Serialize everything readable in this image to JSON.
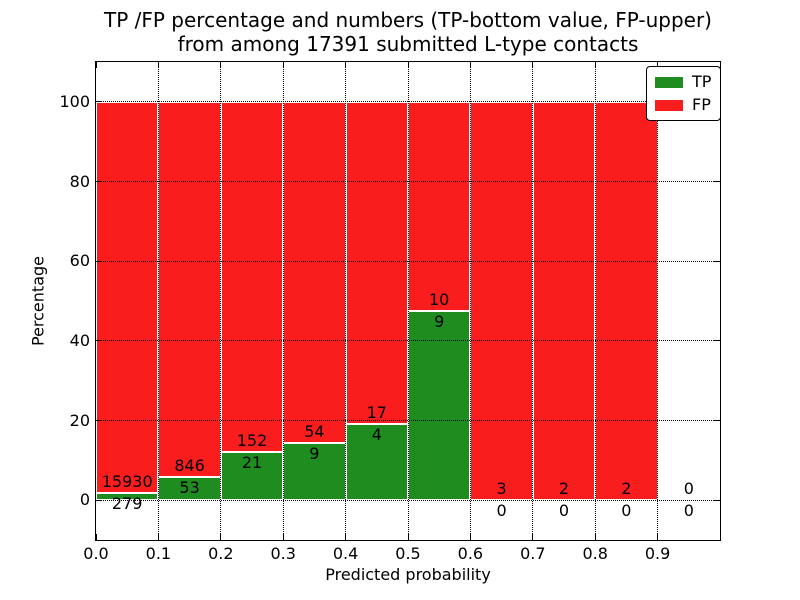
{
  "chart_data": {
    "type": "bar",
    "stacked": true,
    "title_line1": "TP /FP percentage and numbers (TP-bottom value, FP-upper)",
    "title_line2": "from among 17391 submitted L-type contacts",
    "xlabel": "Predicted probability",
    "ylabel": "Percentage",
    "xlim": [
      0.0,
      1.0
    ],
    "ylim": [
      -10,
      110
    ],
    "xtick_values": [
      0.0,
      0.1,
      0.2,
      0.3,
      0.4,
      0.5,
      0.6,
      0.7,
      0.8,
      0.9
    ],
    "xtick_labels": [
      "0.0",
      "0.1",
      "0.2",
      "0.3",
      "0.4",
      "0.5",
      "0.6",
      "0.7",
      "0.8",
      "0.9"
    ],
    "ytick_values": [
      0,
      20,
      40,
      60,
      80,
      100
    ],
    "ytick_labels": [
      "0",
      "20",
      "40",
      "60",
      "80",
      "100"
    ],
    "grid": "dotted",
    "bar_edge_color": "#ffffff",
    "colors": {
      "tp": "#1f8c1f",
      "fp": "#fa1d1d"
    },
    "legend": {
      "position": "upper right",
      "entries": [
        {
          "label": "TP",
          "color": "#1f8c1f"
        },
        {
          "label": "FP",
          "color": "#fa1d1d"
        }
      ]
    },
    "bins": [
      {
        "range": [
          0.0,
          0.1
        ],
        "tp": 279,
        "fp": 15930
      },
      {
        "range": [
          0.1,
          0.2
        ],
        "tp": 53,
        "fp": 846
      },
      {
        "range": [
          0.2,
          0.3
        ],
        "tp": 21,
        "fp": 152
      },
      {
        "range": [
          0.3,
          0.4
        ],
        "tp": 9,
        "fp": 54
      },
      {
        "range": [
          0.4,
          0.5
        ],
        "tp": 4,
        "fp": 17
      },
      {
        "range": [
          0.5,
          0.6
        ],
        "tp": 9,
        "fp": 10
      },
      {
        "range": [
          0.6,
          0.7
        ],
        "tp": 0,
        "fp": 3
      },
      {
        "range": [
          0.7,
          0.8
        ],
        "tp": 0,
        "fp": 2
      },
      {
        "range": [
          0.8,
          0.9
        ],
        "tp": 0,
        "fp": 2
      },
      {
        "range": [
          0.9,
          1.0
        ],
        "tp": 0,
        "fp": 0
      }
    ]
  }
}
